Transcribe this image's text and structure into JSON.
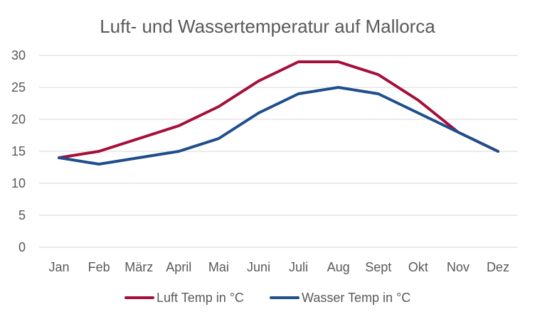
{
  "chart_data": {
    "type": "line",
    "title": "Luft- und Wassertemperatur auf Mallorca",
    "xlabel": "",
    "ylabel": "",
    "categories": [
      "Jan",
      "Feb",
      "März",
      "April",
      "Mai",
      "Juni",
      "Juli",
      "Aug",
      "Sept",
      "Okt",
      "Nov",
      "Dez"
    ],
    "ylim": [
      0,
      30
    ],
    "yticks": [
      0,
      5,
      10,
      15,
      20,
      25,
      30
    ],
    "grid": true,
    "legend_position": "bottom",
    "series": [
      {
        "name": "Luft Temp in °C",
        "color": "#a50f3a",
        "values": [
          14,
          15,
          17,
          19,
          22,
          26,
          29,
          29,
          27,
          23,
          18,
          15
        ]
      },
      {
        "name": "Wasser Temp in °C",
        "color": "#1f4e8c",
        "values": [
          14,
          13,
          14,
          15,
          17,
          21,
          24,
          25,
          24,
          21,
          18,
          15
        ]
      }
    ]
  }
}
